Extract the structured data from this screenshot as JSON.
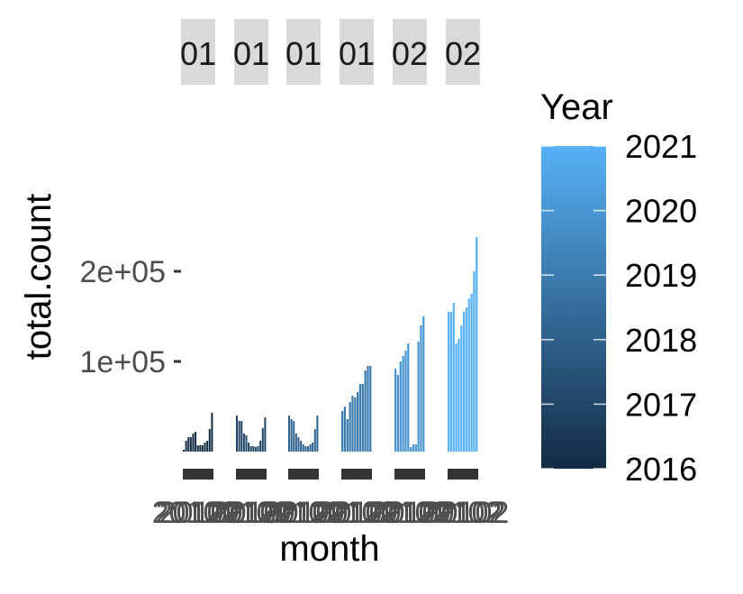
{
  "chart_data": {
    "type": "bar",
    "facet_labels": [
      "01",
      "01",
      "01",
      "01",
      "02",
      "02"
    ],
    "xlabel": "month",
    "ylabel": "total.count",
    "y_ticks": [
      {
        "value": 100000,
        "label": "1e+05"
      },
      {
        "value": 200000,
        "label": "2e+05"
      }
    ],
    "ylim": [
      0,
      250000
    ],
    "x_tick_label_overlap": "20102",
    "legend": {
      "title": "Year",
      "position": "right",
      "type": "colorbar",
      "labels": [
        "2021",
        "2020",
        "2019",
        "2018",
        "2017",
        "2016"
      ],
      "range": [
        2016,
        2021
      ],
      "low_color": "#132b43",
      "high_color": "#56b1f7"
    },
    "panels": [
      {
        "year": 2016,
        "values": [
          2000,
          12000,
          16000,
          16000,
          20000,
          22000,
          7000,
          7000,
          7000,
          10000,
          12000,
          25000,
          43000
        ]
      },
      {
        "year": 2017,
        "values": [
          40000,
          34000,
          34000,
          20000,
          18000,
          10000,
          6000,
          6000,
          5000,
          6000,
          12000,
          26000,
          38000
        ]
      },
      {
        "year": 2018,
        "values": [
          40000,
          36000,
          34000,
          20000,
          16000,
          12000,
          8000,
          6000,
          6000,
          8000,
          10000,
          25000,
          40000
        ]
      },
      {
        "year": 2019,
        "values": [
          45000,
          50000,
          36000,
          55000,
          62000,
          60000,
          66000,
          75000,
          75000,
          90000,
          95000,
          95000
        ]
      },
      {
        "year": 2020,
        "values": [
          92000,
          85000,
          100000,
          106000,
          112000,
          120000,
          5000,
          8000,
          8000,
          122000,
          140000,
          150000
        ]
      },
      {
        "year": 2021,
        "values": [
          155000,
          155000,
          165000,
          120000,
          125000,
          140000,
          155000,
          160000,
          170000,
          175000,
          200000,
          238000
        ]
      }
    ]
  }
}
